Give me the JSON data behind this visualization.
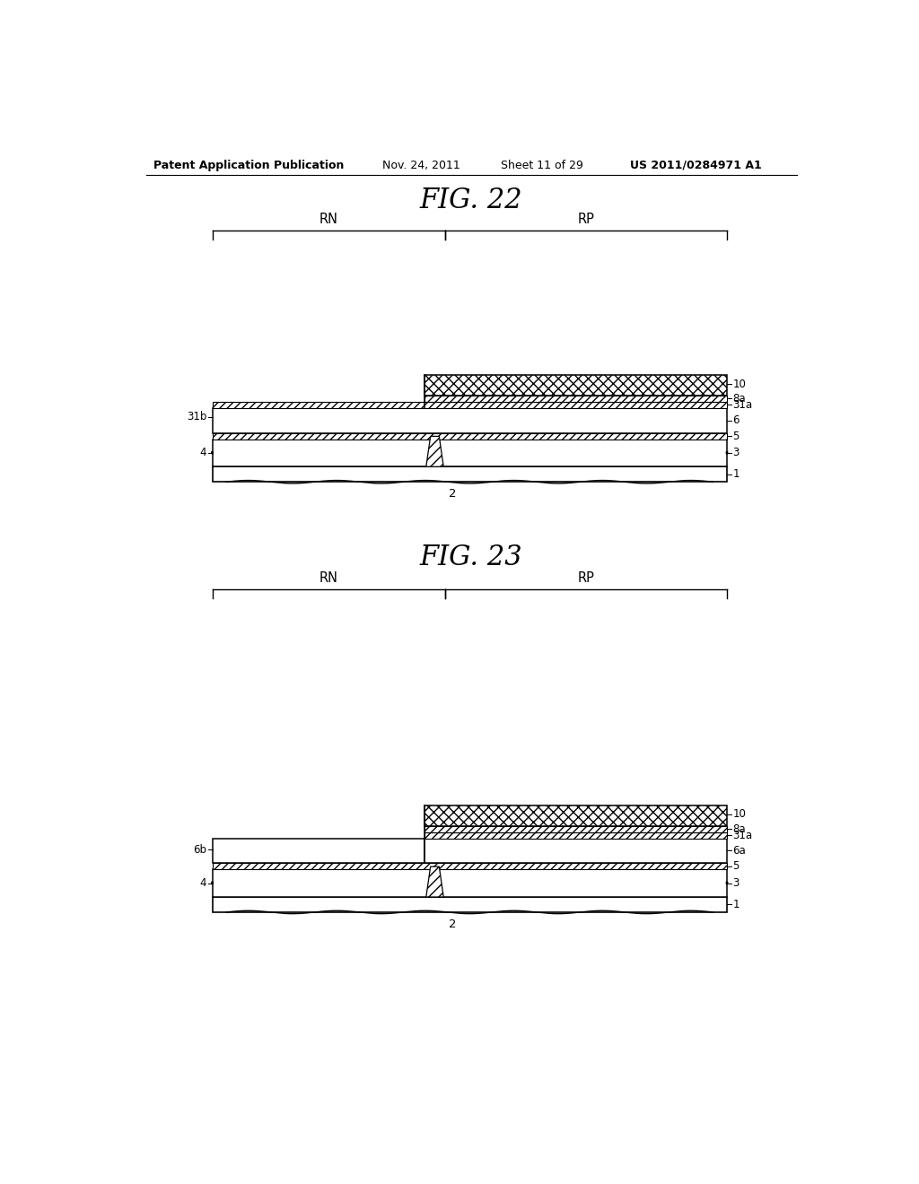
{
  "fig_width": 10.24,
  "fig_height": 13.2,
  "bg_color": "#ffffff",
  "header_text": "Patent Application Publication",
  "header_date": "Nov. 24, 2011",
  "header_sheet": "Sheet 11 of 29",
  "header_patent": "US 2011/0284971 A1",
  "fig22_title": "FIG. 22",
  "fig23_title": "FIG. 23",
  "label_color": "#000000",
  "hatch_color": "#000000",
  "line_color": "#000000"
}
